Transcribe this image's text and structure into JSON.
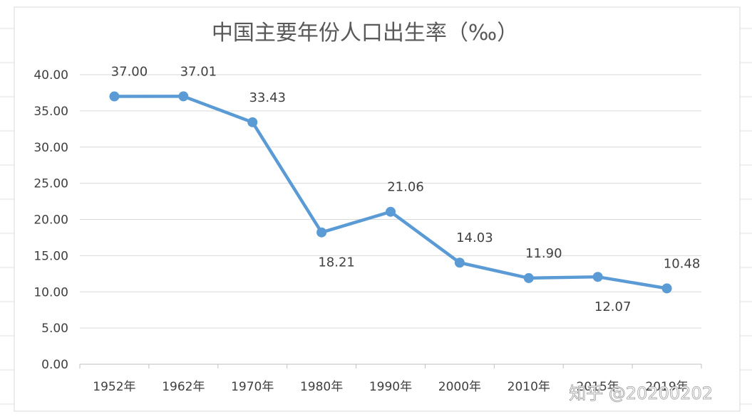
{
  "chart_data": {
    "type": "line",
    "title": "中国主要年份人口出生率（‰）",
    "categories": [
      "1952年",
      "1962年",
      "1970年",
      "1980年",
      "1990年",
      "2000年",
      "2010年",
      "2015年",
      "2019年"
    ],
    "series": [
      {
        "values": [
          37.0,
          37.01,
          33.43,
          18.21,
          21.06,
          14.03,
          11.9,
          12.07,
          10.48
        ],
        "labels": [
          "37.00",
          "37.01",
          "33.43",
          "18.21",
          "21.06",
          "14.03",
          "11.90",
          "12.07",
          "10.48"
        ],
        "label_positions": [
          "above",
          "above",
          "above",
          "below",
          "above",
          "above",
          "above",
          "below",
          "above"
        ]
      }
    ],
    "ylim": [
      0,
      40
    ],
    "yticks": [
      "0.00",
      "5.00",
      "10.00",
      "15.00",
      "20.00",
      "25.00",
      "30.00",
      "35.00",
      "40.00"
    ],
    "grid": true,
    "legend": "none",
    "line_color": "#5b9bd5",
    "grid_color": "#d9d9d9"
  },
  "watermark": "知乎 @20200202"
}
